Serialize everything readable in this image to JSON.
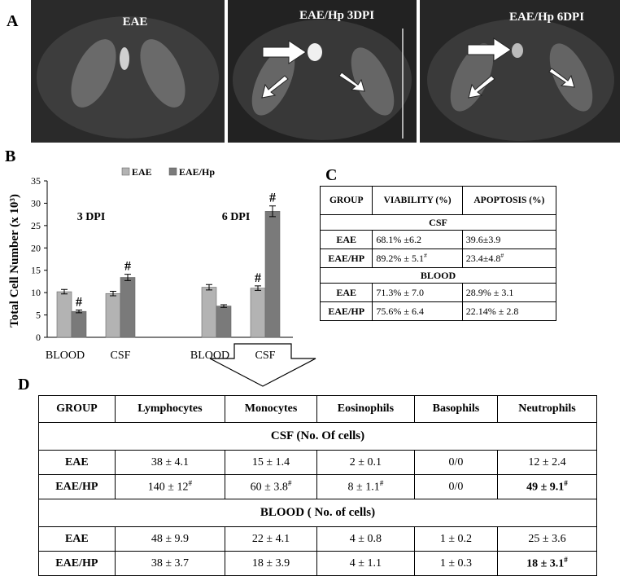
{
  "panel_labels": [
    "A",
    "B",
    "C",
    "D"
  ],
  "images": [
    {
      "label": "EAE"
    },
    {
      "label": "EAE/Hp 3DPI"
    },
    {
      "label": "EAE/Hp 6DPI"
    }
  ],
  "chart_data": {
    "type": "bar",
    "y_label": "Total Cell Number (x 10³)",
    "categories": [
      "BLOOD",
      "CSF",
      "BLOOD",
      "CSF"
    ],
    "groups": [
      "3 DPI",
      "6 DPI"
    ],
    "series": [
      {
        "name": "EAE",
        "color": "#b3b3b3",
        "values": [
          10.2,
          9.8,
          11.2,
          11.0
        ],
        "errors": [
          0.5,
          0.5,
          0.6,
          0.5
        ],
        "marks": [
          null,
          null,
          null,
          "#"
        ]
      },
      {
        "name": "EAE/Hp",
        "color": "#7a7a7a",
        "values": [
          5.8,
          13.4,
          7.0,
          28.2
        ],
        "errors": [
          0.3,
          0.7,
          0.3,
          1.2
        ],
        "marks": [
          "#",
          "#",
          null,
          "#"
        ]
      }
    ],
    "ylim": [
      0,
      35
    ],
    "yticks": [
      0,
      5,
      10,
      15,
      20,
      25,
      30,
      35
    ],
    "grid": false,
    "legend": "top"
  },
  "table_c": {
    "header": [
      "GROUP",
      "VIABILITY (%)",
      "APOPTOSIS (%)"
    ],
    "sections": [
      {
        "title": "CSF",
        "rows": [
          [
            "EAE",
            "68.1% ±6.2",
            "39.6±3.9"
          ],
          [
            "EAE/HP",
            "89.2% ± 5.1#",
            "23.4±4.8#"
          ]
        ]
      },
      {
        "title": "BLOOD",
        "rows": [
          [
            "EAE",
            "71.3% ± 7.0",
            "28.9% ± 3.1"
          ],
          [
            "EAE/HP",
            "75.6% ± 6.4",
            "22.14% ± 2.8"
          ]
        ]
      }
    ]
  },
  "table_d": {
    "header": [
      "GROUP",
      "Lymphocytes",
      "Monocytes",
      "Eosinophils",
      "Basophils",
      "Neutrophils"
    ],
    "sections": [
      {
        "title": "CSF (No. Of cells)",
        "rows": [
          [
            "EAE",
            "38 ± 4.1",
            "15 ± 1.4",
            "2 ± 0.1",
            "0/0",
            "12 ± 2.4"
          ],
          [
            "EAE/HP",
            "140 ± 12#",
            "60 ± 3.8#",
            "8 ± 1.1#",
            "0/0",
            "49 ± 9.1#"
          ]
        ]
      },
      {
        "title": "BLOOD ( No. of cells)",
        "rows": [
          [
            "EAE",
            "48 ± 9.9",
            "22 ± 4.1",
            "4 ± 0.8",
            "1 ± 0.2",
            "25 ± 3.6"
          ],
          [
            "EAE/HP",
            "38 ± 3.7",
            "18 ± 3.9",
            "4 ± 1.1",
            "1 ± 0.3",
            "18 ± 3.1#"
          ]
        ]
      }
    ]
  }
}
